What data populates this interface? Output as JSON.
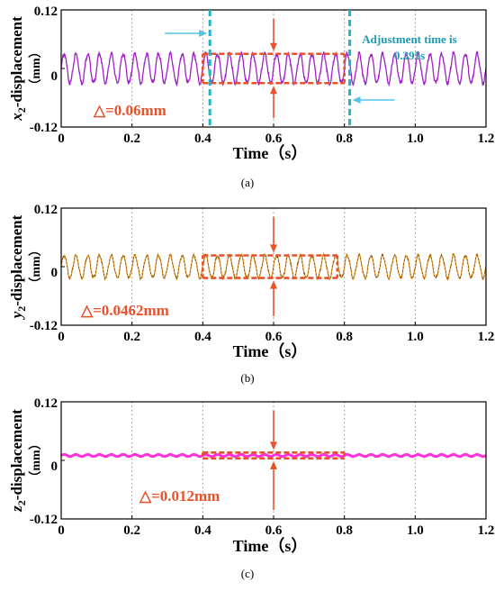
{
  "figure": {
    "captions": [
      "(a)",
      "(b)",
      "(c)"
    ]
  },
  "colors": {
    "x_series": "#a020c8",
    "y_series": "#f29a1a",
    "z_series": "#ff33dd",
    "marker": "#e8512a",
    "cyan": "#22b3c8",
    "grid": "#8a8a8a"
  },
  "chart_data": [
    {
      "type": "line",
      "panel": "a",
      "ylabel_var": "x",
      "ylabel_sub": "2",
      "ylabel_suffix": "-displacement",
      "ylabel_unit": "（mm）",
      "xlabel": "Time（s）",
      "xlim": [
        0,
        1.2
      ],
      "ylim": [
        -0.12,
        0.12
      ],
      "xticks": [
        "0",
        "0.2",
        "0.4",
        "0.6",
        "0.8",
        "1.0",
        "1.2"
      ],
      "yticks": [
        "0.12",
        "0",
        "-0.12"
      ],
      "series": [
        {
          "amplitude": 0.03,
          "frequency_hz": 30,
          "offset": 0
        }
      ],
      "band": {
        "x": [
          0.4,
          0.8
        ],
        "y": [
          -0.03,
          0.03
        ]
      },
      "delta_label": "△=0.06mm",
      "annotation": {
        "text_line1": "Adjustment time is",
        "text_line2": "0.395s"
      },
      "vlines": [
        0.42,
        0.815
      ],
      "grid": "dotted-vertical"
    },
    {
      "type": "line",
      "panel": "b",
      "ylabel_var": "y",
      "ylabel_sub": "2",
      "ylabel_suffix": "-displacement",
      "ylabel_unit": "（mm）",
      "xlabel": "Time（s）",
      "xlim": [
        0,
        1.2
      ],
      "ylim": [
        -0.12,
        0.12
      ],
      "xticks": [
        "0",
        "0.2",
        "0.4",
        "0.6",
        "0.8",
        "1.0",
        "1.2"
      ],
      "yticks": [
        "0.12",
        "0",
        "-0.12"
      ],
      "series": [
        {
          "amplitude": 0.0231,
          "frequency_hz": 30,
          "offset": 0
        }
      ],
      "band": {
        "x": [
          0.4,
          0.78
        ],
        "y": [
          -0.0231,
          0.0231
        ]
      },
      "delta_label": "△=0.0462mm",
      "grid": "dotted-vertical"
    },
    {
      "type": "line",
      "panel": "c",
      "ylabel_var": "z",
      "ylabel_sub": "2",
      "ylabel_suffix": "-displacement",
      "ylabel_unit": "（mm）",
      "xlabel": "Time（s）",
      "xlim": [
        0,
        1.2
      ],
      "ylim": [
        -0.12,
        0.12
      ],
      "xticks": [
        "0",
        "0.2",
        "0.4",
        "0.6",
        "0.8",
        "1.0",
        "1.2"
      ],
      "yticks": [
        "0.12",
        "0",
        "-0.12"
      ],
      "series": [
        {
          "amplitude": 0.002,
          "frequency_hz": 30,
          "offset": 0.01
        }
      ],
      "band": {
        "x": [
          0.4,
          0.8
        ],
        "y": [
          0.004,
          0.016
        ]
      },
      "delta_label": "△=0.012mm",
      "grid": "dotted-vertical"
    }
  ]
}
